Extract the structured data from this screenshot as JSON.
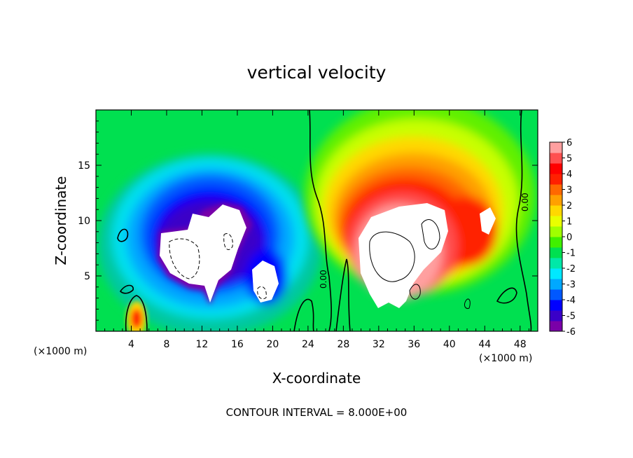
{
  "chart_data": {
    "type": "heatmap",
    "title": "vertical velocity",
    "xlabel": "X-coordinate",
    "ylabel": "Z-coordinate",
    "x_unit_left": "(×1000 m)",
    "x_unit_right": "(×1000 m)",
    "footer": "CONTOUR INTERVAL = 8.000E+00",
    "xlim": [
      0,
      50
    ],
    "ylim": [
      0,
      20
    ],
    "x_ticks": [
      4,
      8,
      12,
      16,
      20,
      24,
      28,
      32,
      36,
      40,
      44,
      48
    ],
    "y_ticks": [
      5,
      10,
      15
    ],
    "contour_labels": [
      "0.00",
      "0.00"
    ],
    "colorbar": {
      "ticks": [
        6,
        5,
        4,
        3,
        2,
        1,
        0,
        -1,
        -2,
        -3,
        -4,
        -5,
        -6
      ],
      "colors": [
        "#7a00a8",
        "#3a00c8",
        "#0000ff",
        "#0058ff",
        "#00a8ff",
        "#00e8ff",
        "#00e8a8",
        "#00e050",
        "#40f000",
        "#a0ff00",
        "#e8ff00",
        "#ffd800",
        "#ffa000",
        "#ff6800",
        "#ff2000",
        "#ff0000",
        "#ff5050",
        "#ffa0a0"
      ]
    },
    "features": [
      {
        "kind": "updraft-core",
        "x": [
          27,
          40
        ],
        "z": [
          0.5,
          12
        ],
        "value": "> 6"
      },
      {
        "kind": "downdraft-core",
        "x": [
          7,
          21
        ],
        "z": [
          2.5,
          11.5
        ],
        "value": "< -6"
      },
      {
        "kind": "surface-updraft",
        "x": [
          4,
          6
        ],
        "z": [
          0,
          2
        ],
        "value": "≈ 5"
      }
    ]
  }
}
